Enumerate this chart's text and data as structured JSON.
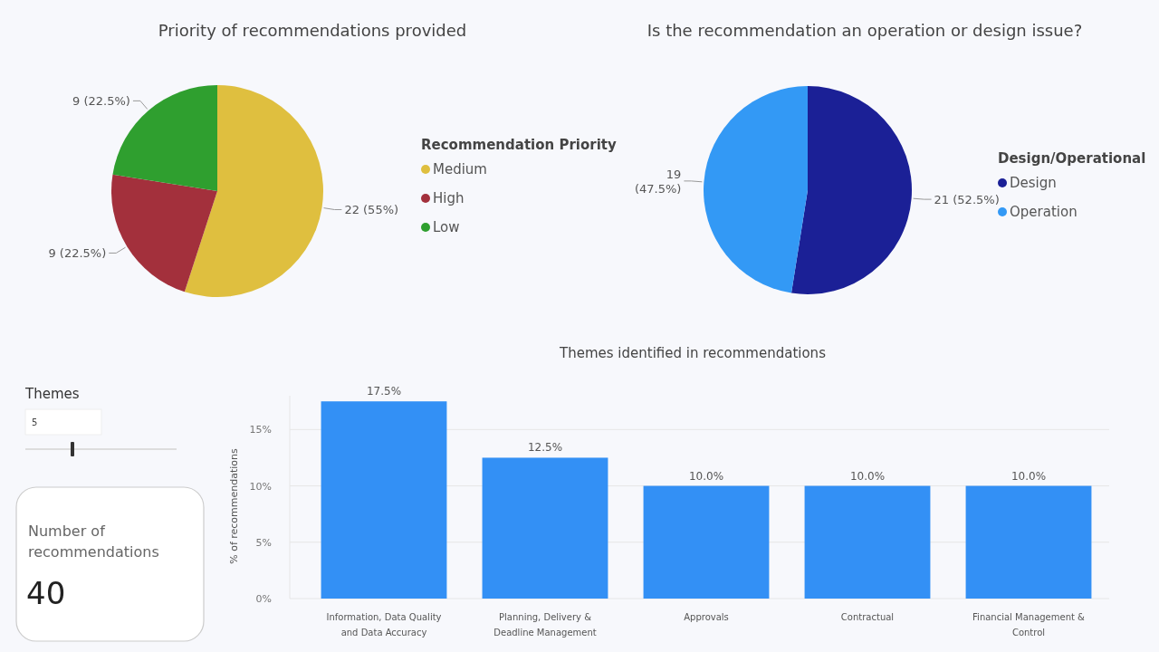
{
  "chart_data": [
    {
      "type": "pie",
      "title": "Priority of recommendations provided",
      "legend_title": "Recommendation Priority",
      "legend": "right",
      "categories": [
        "Medium",
        "High",
        "Low"
      ],
      "values": [
        22,
        9,
        9
      ],
      "colors": [
        "#dfbf3f",
        "#a3303c",
        "#2f9f2f"
      ],
      "value_labels": [
        "22 (55%)",
        "9 (22.5%)",
        "9 (22.5%)"
      ]
    },
    {
      "type": "pie",
      "title": "Is the recommendation an operation or design issue?",
      "legend_title": "Design/Operational",
      "legend": "right",
      "categories": [
        "Design",
        "Operation"
      ],
      "values": [
        21,
        19
      ],
      "colors": [
        "#1b2096",
        "#3399f5"
      ],
      "value_labels": [
        "21 (52.5%)",
        "19 (47.5%)"
      ]
    },
    {
      "type": "bar",
      "title": "Themes identified in recommendations",
      "ylabel": "% of recommendations",
      "categories": [
        "Information, Data Quality and Data Accuracy",
        "Planning, Delivery & Deadline Management",
        "Approvals",
        "Contractual",
        "Financial Management & Control"
      ],
      "values": [
        17.5,
        12.5,
        10,
        10,
        10
      ],
      "color": "#3390f5",
      "value_labels": [
        "17.5%",
        "12.5%",
        "10.0%",
        "10.0%",
        "10.0%"
      ],
      "ylim": [
        0,
        18
      ],
      "yticks": [
        {
          "value": 0,
          "label": "0%"
        },
        {
          "value": 5,
          "label": "5%"
        },
        {
          "value": 10,
          "label": "10%"
        },
        {
          "value": 15,
          "label": "15%"
        }
      ],
      "grid": "y"
    },
    {
      "type": "other",
      "title": "Themes",
      "annotations": [
        "5"
      ]
    },
    {
      "type": "other",
      "title": "Number of recommendations",
      "annotations": [
        "40"
      ]
    }
  ]
}
